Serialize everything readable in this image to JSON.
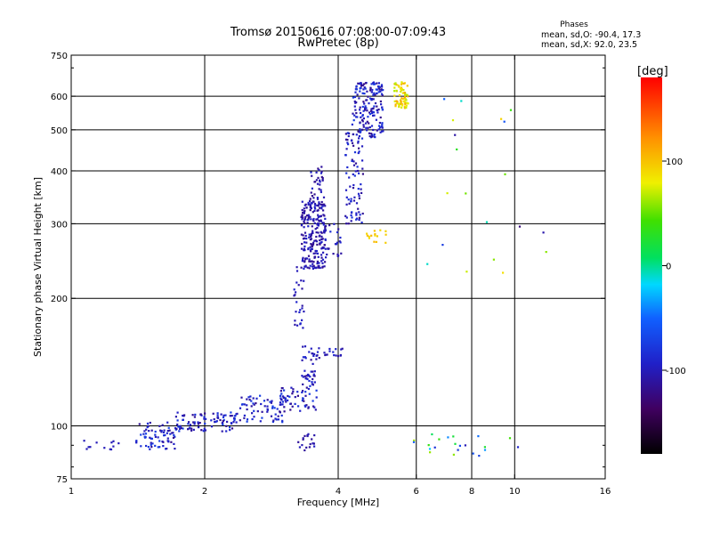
{
  "chart_data": {
    "type": "scatter",
    "title": "Tromsø 20150616 07:08:00-07:09:43",
    "subtitle": "RwPretec (8p)",
    "xlabel": "Frequency [MHz]",
    "ylabel": "Stationary phase Virtual Height [km]",
    "x_scale": "log2",
    "y_scale": "log",
    "xlim": [
      1,
      16
    ],
    "ylim": [
      75,
      750
    ],
    "x_ticks": [
      1,
      2,
      4,
      6,
      8,
      10,
      16
    ],
    "x_tick_labels": [
      "1",
      "2",
      "4",
      "6",
      "8",
      "10",
      "16"
    ],
    "y_ticks": [
      75,
      100,
      200,
      300,
      400,
      500,
      600,
      750
    ],
    "y_tick_labels": [
      "75",
      "100",
      "200",
      "300",
      "400",
      "500",
      "600",
      "750"
    ],
    "grid_x": [
      2,
      4,
      6,
      8,
      10
    ],
    "grid_y": [
      100,
      200,
      300,
      400,
      500,
      600
    ],
    "phases_box": {
      "title": "Phases",
      "line1": "mean, sd,O: -90.4, 17.3",
      "line2": "mean, sd,X:  92.0, 23.5"
    },
    "colorbar": {
      "label": "[deg]",
      "range": [
        -180,
        180
      ],
      "ticks": [
        100,
        0,
        -100
      ],
      "tick_labels": [
        "100",
        "0",
        "-100"
      ]
    },
    "clusters": [
      {
        "name": "low-noise-left",
        "x": [
          1.03,
          1.28
        ],
        "y": [
          87,
          93
        ],
        "phase": -100,
        "count": 12,
        "spread": 0
      },
      {
        "name": "low-band-1.4",
        "x": [
          1.4,
          1.72
        ],
        "y": [
          88,
          102
        ],
        "phase": -95,
        "count": 70,
        "spread": 25
      },
      {
        "name": "low-band-1.9",
        "x": [
          1.72,
          2.35
        ],
        "y": [
          97,
          108
        ],
        "phase": -95,
        "count": 90,
        "spread": 25
      },
      {
        "name": "low-band-2.4",
        "x": [
          2.35,
          3.05
        ],
        "y": [
          102,
          118
        ],
        "phase": -95,
        "count": 70,
        "spread": 25
      },
      {
        "name": "low-band-3.3",
        "x": [
          2.95,
          3.62
        ],
        "y": [
          108,
          125
        ],
        "phase": -95,
        "count": 55,
        "spread": 25
      },
      {
        "name": "mid-band-3.4",
        "x": [
          3.3,
          3.55
        ],
        "y": [
          125,
          135
        ],
        "phase": -100,
        "count": 25,
        "spread": 15
      },
      {
        "name": "mid-band-3.5",
        "x": [
          3.3,
          3.65
        ],
        "y": [
          140,
          155
        ],
        "phase": -100,
        "count": 20,
        "spread": 15
      },
      {
        "name": "noise-3.3-low",
        "x": [
          3.25,
          3.55
        ],
        "y": [
          87,
          96
        ],
        "phase": -105,
        "count": 20,
        "spread": 10
      },
      {
        "name": "e-trace-3.9",
        "x": [
          3.7,
          4.15
        ],
        "y": [
          143,
          153
        ],
        "phase": -100,
        "count": 15,
        "spread": 10
      },
      {
        "name": "f1-rise",
        "x": [
          3.18,
          3.35
        ],
        "y": [
          170,
          240
        ],
        "phase": -100,
        "count": 25,
        "spread": 10
      },
      {
        "name": "f1-cusp",
        "x": [
          3.3,
          3.75
        ],
        "y": [
          235,
          340
        ],
        "phase": -105,
        "count": 230,
        "spread": 15
      },
      {
        "name": "f1-upper",
        "x": [
          3.45,
          3.72
        ],
        "y": [
          330,
          410
        ],
        "phase": -105,
        "count": 35,
        "spread": 15
      },
      {
        "name": "f1-tail",
        "x": [
          3.7,
          4.1
        ],
        "y": [
          250,
          300
        ],
        "phase": -100,
        "count": 25,
        "spread": 15
      },
      {
        "name": "f2-rise",
        "x": [
          4.15,
          4.55
        ],
        "y": [
          300,
          500
        ],
        "phase": -100,
        "count": 90,
        "spread": 20
      },
      {
        "name": "f2-upper",
        "x": [
          4.3,
          5.05
        ],
        "y": [
          480,
          650
        ],
        "phase": -95,
        "count": 170,
        "spread": 25
      },
      {
        "name": "x-trace",
        "x": [
          4.6,
          5.2
        ],
        "y": [
          270,
          290
        ],
        "phase": 95,
        "count": 15,
        "spread": 10
      },
      {
        "name": "x-upper",
        "x": [
          5.35,
          5.75
        ],
        "y": [
          560,
          650
        ],
        "phase": 90,
        "count": 70,
        "spread": 25
      },
      {
        "name": "noise-high-right",
        "x": [
          6.2,
          12.5
        ],
        "y": [
          200,
          620
        ],
        "phase": -20,
        "count": 20,
        "spread": 120
      },
      {
        "name": "noise-low-right",
        "x": [
          5.8,
          10.5
        ],
        "y": [
          85,
          96
        ],
        "phase": -20,
        "count": 22,
        "spread": 90
      }
    ]
  }
}
